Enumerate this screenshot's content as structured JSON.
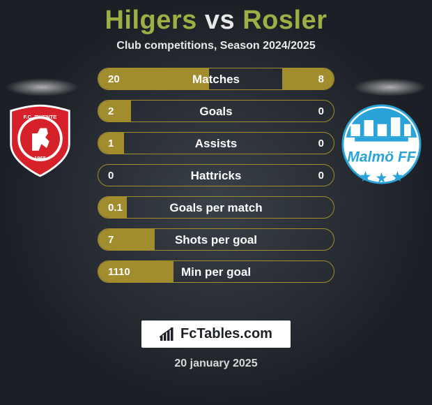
{
  "title": {
    "player1": "Hilgers",
    "vs": "vs",
    "player2": "Rosler"
  },
  "subtitle": "Club competitions, Season 2024/2025",
  "footer": {
    "brand": "FcTables.com",
    "date": "20 january 2025"
  },
  "colors": {
    "accent_title": "#9eb045",
    "bar_border": "#a18d2e",
    "bar_fill": "#a18d2e",
    "text_light": "#fdfdfd",
    "bg_inner": "#3a4048",
    "bg_outer": "#1c2026",
    "brand_bg": "#ffffff",
    "brand_text": "#1c2026",
    "twente_red": "#d6202a",
    "twente_white": "#ffffff",
    "malmo_blue": "#2aa3d9",
    "malmo_white": "#ffffff"
  },
  "stats": [
    {
      "label": "Matches",
      "left_val": "20",
      "right_val": "8",
      "left_pct": 47,
      "right_pct": 22
    },
    {
      "label": "Goals",
      "left_val": "2",
      "right_val": "0",
      "left_pct": 14,
      "right_pct": 0
    },
    {
      "label": "Assists",
      "left_val": "1",
      "right_val": "0",
      "left_pct": 11,
      "right_pct": 0
    },
    {
      "label": "Hattricks",
      "left_val": "0",
      "right_val": "0",
      "left_pct": 0,
      "right_pct": 0
    },
    {
      "label": "Goals per match",
      "left_val": "0.1",
      "right_val": "",
      "left_pct": 12,
      "right_pct": 0
    },
    {
      "label": "Shots per goal",
      "left_val": "7",
      "right_val": "",
      "left_pct": 24,
      "right_pct": 0
    },
    {
      "label": "Min per goal",
      "left_val": "1110",
      "right_val": "",
      "left_pct": 32,
      "right_pct": 0
    }
  ]
}
